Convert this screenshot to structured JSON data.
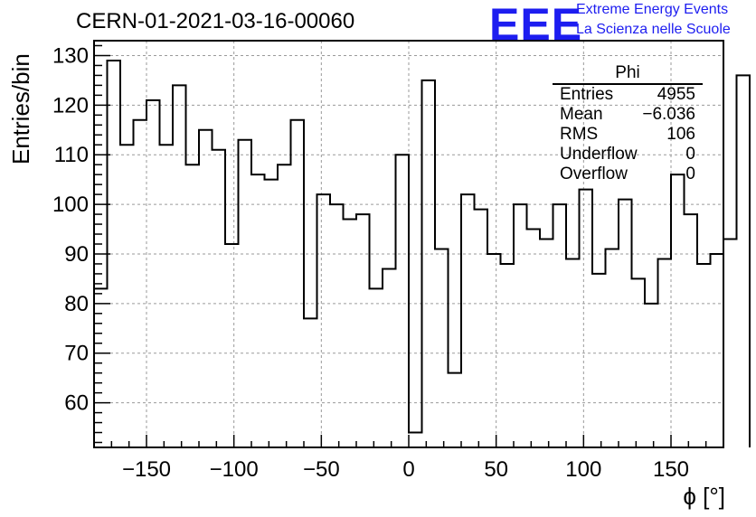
{
  "header": {
    "title": "CERN-01-2021-03-16-00060",
    "logo_text": "EEE",
    "logo_line1": "Extreme Energy Events",
    "logo_line2": "La Scienza nelle Scuole"
  },
  "stats_box": {
    "name": "Phi",
    "rows": [
      {
        "label": "Entries",
        "value": "4955"
      },
      {
        "label": "Mean",
        "value": "−6.036"
      },
      {
        "label": "RMS",
        "value": "106"
      },
      {
        "label": "Underflow",
        "value": "0"
      },
      {
        "label": "Overflow",
        "value": "0"
      }
    ]
  },
  "colors": {
    "line": "#000000",
    "grid": "#9a9a9a",
    "logo": "#1d1df0"
  },
  "chart_data": {
    "type": "bar",
    "style": "step-histogram",
    "title": "CERN-01-2021-03-16-00060",
    "xlabel": "ϕ [°]",
    "ylabel": "Entries/bin",
    "xlim": [
      -180,
      180
    ],
    "ylim": [
      51,
      133
    ],
    "grid": true,
    "bin_width": 7.5,
    "bin_edges_start": -180,
    "values": [
      83,
      129,
      112,
      117,
      121,
      112,
      124,
      108,
      115,
      111,
      92,
      113,
      106,
      105,
      108,
      117,
      77,
      102,
      100,
      97,
      98,
      83,
      87,
      110,
      54,
      125,
      91,
      66,
      102,
      99,
      90,
      88,
      100,
      95,
      93,
      100,
      89,
      103,
      86,
      91,
      101,
      85,
      80,
      89,
      106,
      98,
      88,
      90,
      93,
      126
    ],
    "xticks": [
      -150,
      -100,
      -50,
      0,
      50,
      100,
      150
    ],
    "xtick_labels": [
      "−150",
      "−100",
      "−50",
      "0",
      "50",
      "100",
      "150"
    ],
    "yticks": [
      60,
      70,
      80,
      90,
      100,
      110,
      120,
      130
    ],
    "ytick_labels": [
      "60",
      "70",
      "80",
      "90",
      "100",
      "110",
      "120",
      "130"
    ]
  }
}
